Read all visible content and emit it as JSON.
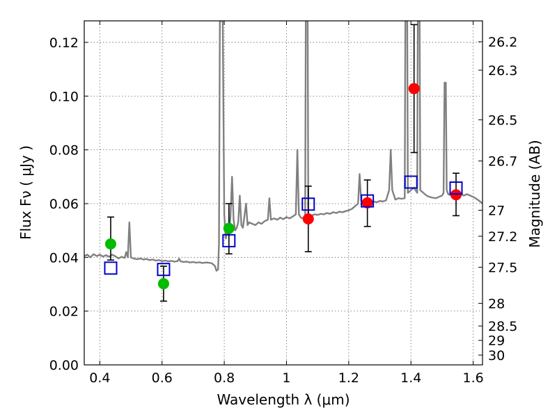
{
  "chart_data": {
    "type": "scatter",
    "title": "",
    "xlabel": "Wavelength  λ (μm)",
    "ylabel": "Flux  Fν  ( μJy )",
    "y2label": "Magnitude (AB)",
    "xlim": [
      0.35,
      1.63
    ],
    "ylim": [
      0.0,
      0.128
    ],
    "grid": true,
    "x_ticks": [
      "0.4",
      "0.6",
      "0.8",
      "1",
      "1.2",
      "1.4",
      "1.6"
    ],
    "x_tick_values": [
      0.4,
      0.6,
      0.8,
      1.0,
      1.2,
      1.4,
      1.6
    ],
    "y_ticks": [
      "0.00",
      "0.02",
      "0.04",
      "0.06",
      "0.08",
      "0.10",
      "0.12"
    ],
    "y_tick_values": [
      0.0,
      0.02,
      0.04,
      0.06,
      0.08,
      0.1,
      0.12
    ],
    "mag_ticks": [
      "26.2",
      "26.3",
      "26.5",
      "26.7",
      "27",
      "27.2",
      "27.5",
      "28",
      "28.5",
      "29",
      "30"
    ],
    "mag_tick_values": [
      26.2,
      26.3,
      26.5,
      26.7,
      27.0,
      27.2,
      27.5,
      28.0,
      28.5,
      29.0,
      30.0
    ],
    "colors": {
      "spectrum": "#808080",
      "green_points": "#00bb00",
      "red_points": "#ff0000",
      "model_squares": "#0000cc",
      "errorbar": "#000000"
    },
    "spectrum": [
      [
        0.35,
        0.0405
      ],
      [
        0.36,
        0.041
      ],
      [
        0.37,
        0.04
      ],
      [
        0.38,
        0.0412
      ],
      [
        0.39,
        0.0405
      ],
      [
        0.4,
        0.041
      ],
      [
        0.41,
        0.0403
      ],
      [
        0.42,
        0.0408
      ],
      [
        0.43,
        0.0402
      ],
      [
        0.44,
        0.041
      ],
      [
        0.45,
        0.0404
      ],
      [
        0.46,
        0.0396
      ],
      [
        0.47,
        0.0402
      ],
      [
        0.48,
        0.0398
      ],
      [
        0.485,
        0.042
      ],
      [
        0.49,
        0.04
      ],
      [
        0.495,
        0.053
      ],
      [
        0.5,
        0.04
      ],
      [
        0.51,
        0.0395
      ],
      [
        0.52,
        0.0393
      ],
      [
        0.53,
        0.0396
      ],
      [
        0.54,
        0.0392
      ],
      [
        0.55,
        0.0394
      ],
      [
        0.56,
        0.039
      ],
      [
        0.57,
        0.0392
      ],
      [
        0.58,
        0.0388
      ],
      [
        0.59,
        0.039
      ],
      [
        0.6,
        0.0386
      ],
      [
        0.61,
        0.0388
      ],
      [
        0.62,
        0.0385
      ],
      [
        0.63,
        0.0387
      ],
      [
        0.64,
        0.0384
      ],
      [
        0.65,
        0.0386
      ],
      [
        0.655,
        0.0395
      ],
      [
        0.66,
        0.0385
      ],
      [
        0.67,
        0.0383
      ],
      [
        0.68,
        0.0384
      ],
      [
        0.69,
        0.0381
      ],
      [
        0.7,
        0.0383
      ],
      [
        0.71,
        0.038
      ],
      [
        0.72,
        0.0382
      ],
      [
        0.73,
        0.0379
      ],
      [
        0.74,
        0.0381
      ],
      [
        0.75,
        0.038
      ],
      [
        0.76,
        0.0378
      ],
      [
        0.77,
        0.0368
      ],
      [
        0.775,
        0.035
      ],
      [
        0.78,
        0.0355
      ],
      [
        0.783,
        0.045
      ],
      [
        0.786,
        0.128
      ],
      [
        0.795,
        0.128
      ],
      [
        0.8,
        0.056
      ],
      [
        0.805,
        0.047
      ],
      [
        0.81,
        0.05
      ],
      [
        0.815,
        0.048
      ],
      [
        0.82,
        0.055
      ],
      [
        0.825,
        0.07
      ],
      [
        0.83,
        0.054
      ],
      [
        0.835,
        0.05
      ],
      [
        0.84,
        0.051
      ],
      [
        0.845,
        0.053
      ],
      [
        0.85,
        0.063
      ],
      [
        0.855,
        0.052
      ],
      [
        0.86,
        0.051
      ],
      [
        0.87,
        0.06
      ],
      [
        0.875,
        0.052
      ],
      [
        0.88,
        0.053
      ],
      [
        0.89,
        0.0525
      ],
      [
        0.9,
        0.052
      ],
      [
        0.91,
        0.053
      ],
      [
        0.92,
        0.0525
      ],
      [
        0.93,
        0.0535
      ],
      [
        0.94,
        0.054
      ],
      [
        0.945,
        0.062
      ],
      [
        0.95,
        0.054
      ],
      [
        0.96,
        0.0545
      ],
      [
        0.97,
        0.054
      ],
      [
        0.98,
        0.0548
      ],
      [
        0.99,
        0.0542
      ],
      [
        1.0,
        0.055
      ],
      [
        1.01,
        0.0545
      ],
      [
        1.02,
        0.0552
      ],
      [
        1.03,
        0.056
      ],
      [
        1.035,
        0.08
      ],
      [
        1.04,
        0.056
      ],
      [
        1.045,
        0.055
      ],
      [
        1.05,
        0.0545
      ],
      [
        1.06,
        0.055
      ],
      [
        1.062,
        0.128
      ],
      [
        1.068,
        0.128
      ],
      [
        1.07,
        0.056
      ],
      [
        1.08,
        0.0555
      ],
      [
        1.09,
        0.056
      ],
      [
        1.1,
        0.0558
      ],
      [
        1.11,
        0.0562
      ],
      [
        1.12,
        0.056
      ],
      [
        1.13,
        0.0565
      ],
      [
        1.14,
        0.0562
      ],
      [
        1.15,
        0.0568
      ],
      [
        1.16,
        0.0565
      ],
      [
        1.17,
        0.057
      ],
      [
        1.18,
        0.0568
      ],
      [
        1.19,
        0.0572
      ],
      [
        1.2,
        0.0575
      ],
      [
        1.21,
        0.058
      ],
      [
        1.22,
        0.059
      ],
      [
        1.23,
        0.06
      ],
      [
        1.235,
        0.071
      ],
      [
        1.24,
        0.061
      ],
      [
        1.25,
        0.06
      ],
      [
        1.26,
        0.0605
      ],
      [
        1.27,
        0.0602
      ],
      [
        1.28,
        0.0608
      ],
      [
        1.29,
        0.0605
      ],
      [
        1.3,
        0.061
      ],
      [
        1.31,
        0.0608
      ],
      [
        1.32,
        0.0612
      ],
      [
        1.33,
        0.065
      ],
      [
        1.335,
        0.08
      ],
      [
        1.34,
        0.065
      ],
      [
        1.35,
        0.0615
      ],
      [
        1.36,
        0.062
      ],
      [
        1.37,
        0.0618
      ],
      [
        1.38,
        0.062
      ],
      [
        1.382,
        0.128
      ],
      [
        1.388,
        0.128
      ],
      [
        1.39,
        0.064
      ],
      [
        1.4,
        0.065
      ],
      [
        1.41,
        0.066
      ],
      [
        1.415,
        0.065
      ],
      [
        1.42,
        0.064
      ],
      [
        1.422,
        0.128
      ],
      [
        1.428,
        0.128
      ],
      [
        1.43,
        0.065
      ],
      [
        1.44,
        0.064
      ],
      [
        1.45,
        0.063
      ],
      [
        1.46,
        0.0625
      ],
      [
        1.47,
        0.0622
      ],
      [
        1.48,
        0.062
      ],
      [
        1.49,
        0.0625
      ],
      [
        1.5,
        0.063
      ],
      [
        1.505,
        0.064
      ],
      [
        1.508,
        0.105
      ],
      [
        1.512,
        0.105
      ],
      [
        1.515,
        0.065
      ],
      [
        1.52,
        0.0635
      ],
      [
        1.53,
        0.063
      ],
      [
        1.54,
        0.0635
      ],
      [
        1.55,
        0.063
      ],
      [
        1.56,
        0.0635
      ],
      [
        1.57,
        0.063
      ],
      [
        1.58,
        0.0635
      ],
      [
        1.59,
        0.063
      ],
      [
        1.6,
        0.0625
      ],
      [
        1.61,
        0.0618
      ],
      [
        1.62,
        0.061
      ],
      [
        1.63,
        0.06
      ]
    ],
    "green_points": [
      {
        "x": 0.435,
        "y": 0.045,
        "err_low": 0.006,
        "err_high": 0.01
      },
      {
        "x": 0.605,
        "y": 0.0302,
        "err_low": 0.0065,
        "err_high": 0.0065
      },
      {
        "x": 0.815,
        "y": 0.0508,
        "err_low": 0.0095,
        "err_high": 0.0092
      }
    ],
    "red_points": [
      {
        "x": 1.07,
        "y": 0.0543,
        "err_low": 0.0122,
        "err_high": 0.0122
      },
      {
        "x": 1.26,
        "y": 0.0603,
        "err_low": 0.0088,
        "err_high": 0.0085
      },
      {
        "x": 1.41,
        "y": 0.1028,
        "err_low": 0.0238,
        "err_high": 0.0238
      },
      {
        "x": 1.545,
        "y": 0.0633,
        "err_low": 0.0078,
        "err_high": 0.008
      }
    ],
    "model_squares": [
      {
        "x": 0.435,
        "y": 0.036
      },
      {
        "x": 0.605,
        "y": 0.0355
      },
      {
        "x": 0.815,
        "y": 0.0462
      },
      {
        "x": 1.07,
        "y": 0.0598
      },
      {
        "x": 1.26,
        "y": 0.061
      },
      {
        "x": 1.4,
        "y": 0.068
      },
      {
        "x": 1.545,
        "y": 0.0658
      }
    ]
  }
}
